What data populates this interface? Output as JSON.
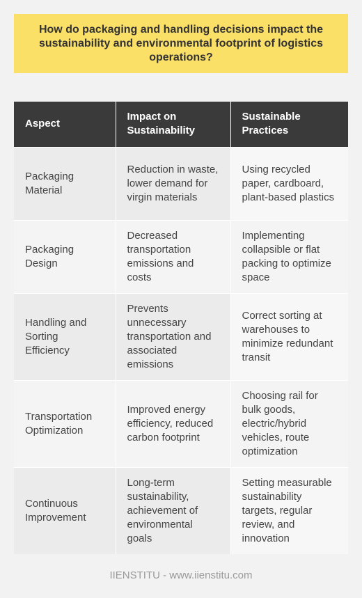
{
  "title": "How do packaging and handling decisions impact the sustainability and environmental footprint of logistics operations?",
  "table": {
    "headers": [
      "Aspect",
      "Impact on Sustainability",
      "Sustainable Practices"
    ],
    "rows": [
      [
        "Packaging Material",
        "Reduction in waste, lower demand for virgin materials",
        "Using recycled paper, cardboard, plant-based plastics"
      ],
      [
        "Packaging Design",
        "Decreased transportation emissions and costs",
        "Implementing collapsible or flat packing to optimize space"
      ],
      [
        "Handling and Sorting Efficiency",
        "Prevents unnecessary transportation and associated emissions",
        "Correct sorting at warehouses to minimize redundant transit"
      ],
      [
        "Transportation Optimization",
        "Improved energy efficiency, reduced carbon footprint",
        "Choosing rail for bulk goods, electric/hybrid vehicles, route optimization"
      ],
      [
        "Continuous Improvement",
        "Long-term sustainability, achievement of environmental goals",
        "Setting measurable sustainability targets, regular review, and innovation"
      ]
    ]
  },
  "footer": "IIENSTITU - www.iienstitu.com",
  "colors": {
    "title_background": "#fbe067",
    "header_background": "#3a3a3a",
    "page_background": "#f2f2f2"
  }
}
